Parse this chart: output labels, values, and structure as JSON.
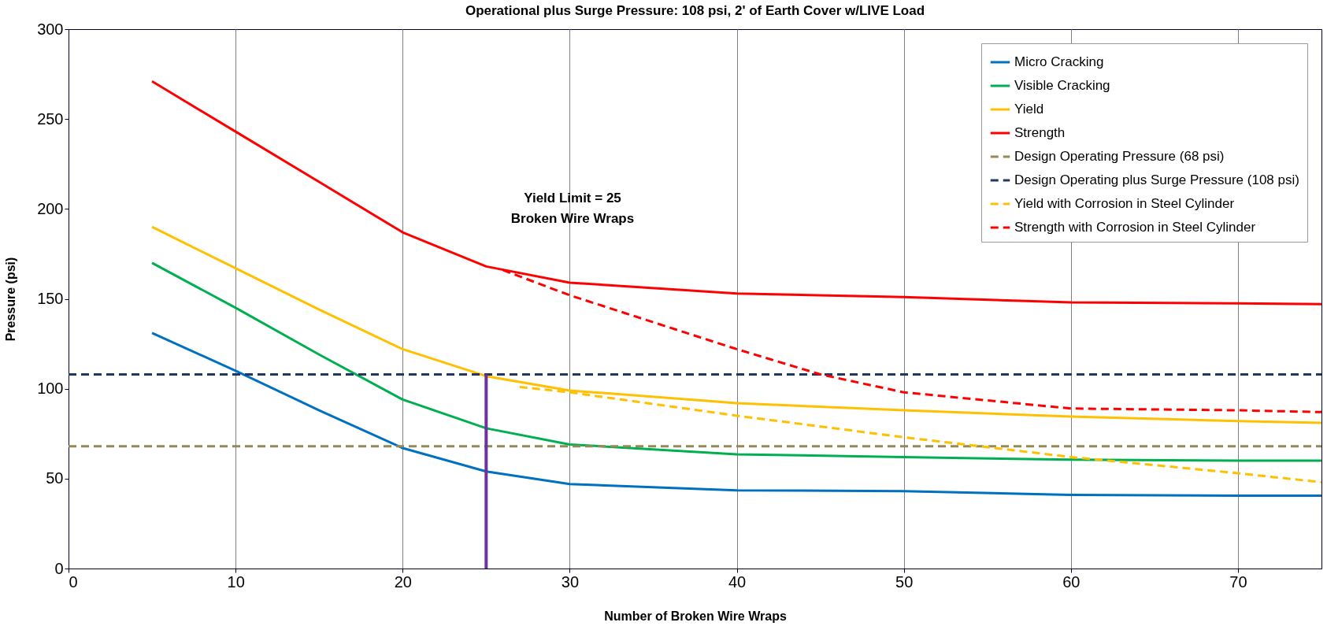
{
  "chart_data": {
    "type": "line",
    "title": "Operational plus Surge Pressure: 108 psi, 2' of Earth Cover w/LIVE Load",
    "xlabel": "Number of Broken Wire Wraps",
    "ylabel": "Pressure (psi)",
    "xlim": [
      0,
      75
    ],
    "xticks": [
      0,
      10,
      20,
      30,
      40,
      50,
      60,
      70
    ],
    "ylim": [
      0,
      300
    ],
    "yticks": [
      0,
      50,
      100,
      150,
      200,
      250,
      300
    ],
    "grid": "x",
    "legend": "top right",
    "marker": "none",
    "series": [
      {
        "name": "Micro Cracking",
        "color": "#0070c0",
        "line_style": "solid",
        "x": [
          5,
          10,
          15,
          20,
          25,
          30,
          40,
          50,
          60,
          70,
          75
        ],
        "values": [
          131,
          110,
          88,
          67,
          54,
          47,
          43.5,
          43,
          41,
          40.5,
          40.5
        ]
      },
      {
        "name": "Visible Cracking",
        "color": "#00b050",
        "line_style": "solid",
        "x": [
          5,
          10,
          15,
          20,
          25,
          30,
          40,
          50,
          60,
          70,
          75
        ],
        "values": [
          170,
          145,
          119,
          94,
          78,
          69,
          63.5,
          62,
          60.5,
          60,
          60
        ]
      },
      {
        "name": "Yield",
        "color": "#ffc000",
        "line_style": "solid",
        "x": [
          5,
          10,
          15,
          20,
          25,
          30,
          40,
          50,
          60,
          70,
          75
        ],
        "values": [
          190,
          167,
          144,
          122,
          107,
          99,
          92,
          88,
          84.5,
          82,
          81
        ]
      },
      {
        "name": "Strength",
        "color": "#ff0000",
        "line_style": "solid",
        "x": [
          5,
          10,
          15,
          20,
          25,
          30,
          40,
          50,
          60,
          70,
          75
        ],
        "values": [
          271,
          243,
          215,
          187,
          168,
          159,
          153,
          151,
          148,
          147.5,
          147
        ]
      },
      {
        "name": "Design Operating Pressure (68 psi)",
        "color": "#948a54",
        "line_style": "dashed",
        "x": [
          0,
          75
        ],
        "values": [
          68,
          68
        ]
      },
      {
        "name": "Design Operating plus Surge Pressure (108 psi)",
        "color": "#1f3864",
        "line_style": "dashed",
        "x": [
          0,
          75
        ],
        "values": [
          108,
          108
        ]
      },
      {
        "name": "Yield with Corrosion in Steel Cylinder",
        "color": "#ffc000",
        "line_style": "dashed",
        "x": [
          27,
          30,
          40,
          50,
          60,
          70,
          75
        ],
        "values": [
          101,
          98,
          85,
          73,
          62,
          53,
          48
        ]
      },
      {
        "name": "Strength with Corrosion in Steel Cylinder",
        "color": "#ff0000",
        "line_style": "dashed",
        "x": [
          26,
          30,
          40,
          45,
          50,
          60,
          70,
          75
        ],
        "values": [
          166,
          152,
          122,
          108,
          98,
          89,
          88,
          87
        ]
      },
      {
        "color": "#7030a0",
        "line_style": "solid",
        "x": [
          25,
          25
        ],
        "values": [
          0,
          108
        ]
      }
    ],
    "annotations": [
      "Yield Limit = 25 Broken Wire Wraps"
    ]
  }
}
